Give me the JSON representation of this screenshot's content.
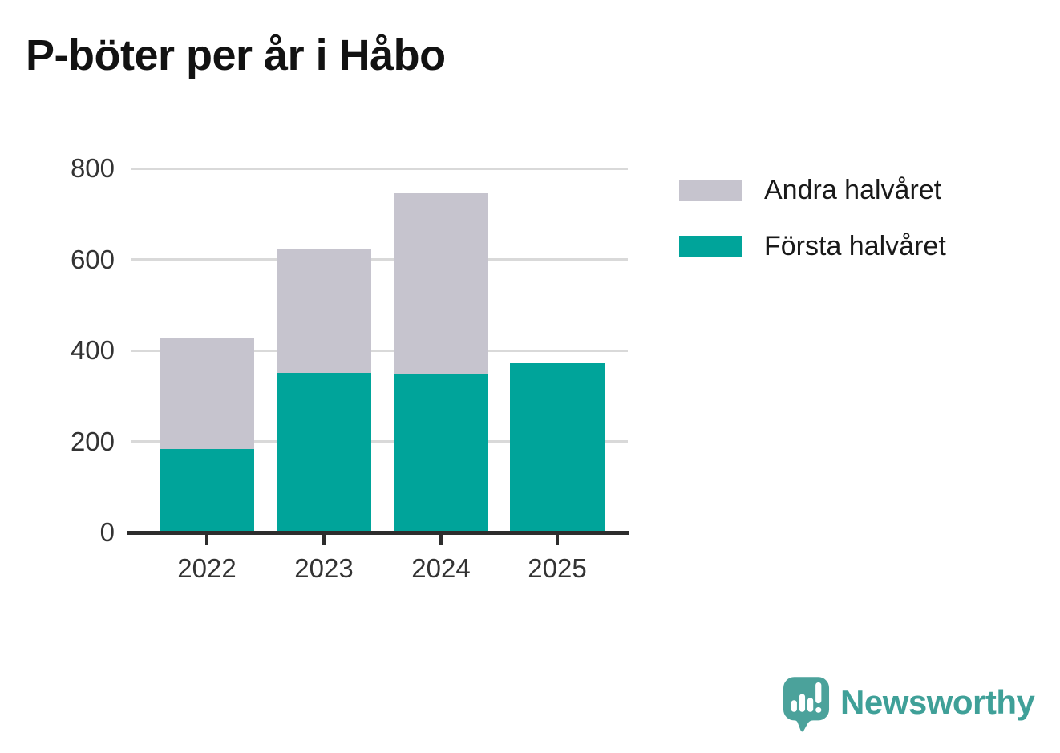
{
  "title": "P-böter per år i Håbo",
  "chart_data": {
    "type": "bar",
    "stacked": true,
    "title": "P-böter per år i Håbo",
    "categories": [
      "2022",
      "2023",
      "2024",
      "2025"
    ],
    "series": [
      {
        "name": "Första halvåret",
        "color": "#00a49a",
        "values": [
          184,
          351,
          347,
          372
        ]
      },
      {
        "name": "Andra halvåret",
        "color": "#c6c4ce",
        "values": [
          245,
          272,
          398,
          0
        ]
      }
    ],
    "stack_totals": [
      429,
      623,
      745,
      372
    ],
    "xlabel": "",
    "ylabel": "",
    "ylim": [
      0,
      800
    ],
    "yticks": [
      0,
      200,
      400,
      600,
      800
    ],
    "grid": "horizontal-behind-bars",
    "legend_position": "right-top"
  },
  "legend": {
    "items": [
      {
        "label": "Andra halvåret",
        "color": "#c6c4ce"
      },
      {
        "label": "Första halvåret",
        "color": "#00a49a"
      }
    ]
  },
  "branding": {
    "wordmark": "Newsworthy",
    "logo_icon": "newsworthy-speech-bubble-chart-icon",
    "color": "#3fa098"
  },
  "colors": {
    "background": "#ffffff",
    "title": "#121212",
    "grid": "#d9d9d9",
    "axis": "#2d2d2d",
    "tick_label": "#333333",
    "legend_label": "#191919"
  }
}
